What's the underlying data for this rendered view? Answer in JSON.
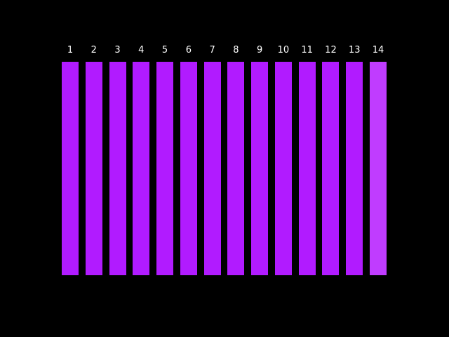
{
  "columns": [
    {
      "label": "1"
    },
    {
      "label": "2"
    },
    {
      "label": "3"
    },
    {
      "label": "4"
    },
    {
      "label": "5"
    },
    {
      "label": "6"
    },
    {
      "label": "7"
    },
    {
      "label": "8"
    },
    {
      "label": "9"
    },
    {
      "label": "10"
    },
    {
      "label": "11"
    },
    {
      "label": "12"
    },
    {
      "label": "13"
    },
    {
      "label": "14"
    }
  ]
}
